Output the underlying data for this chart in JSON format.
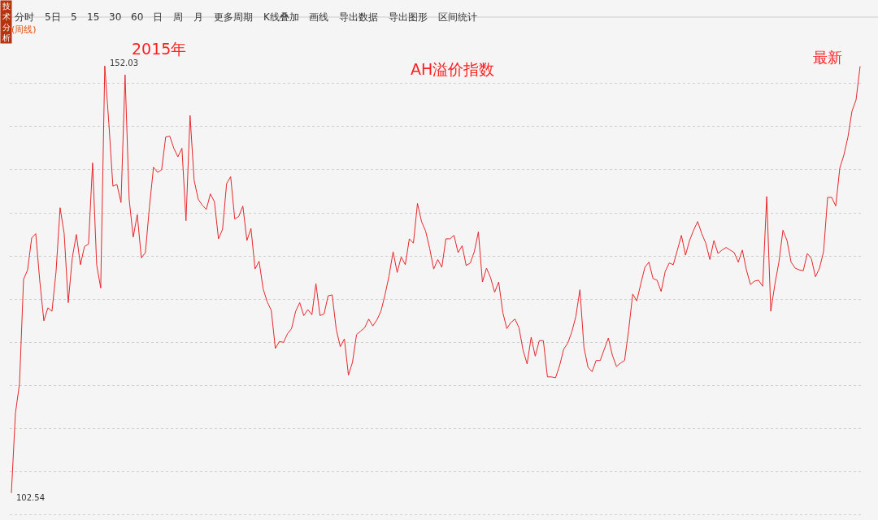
{
  "chart_data": {
    "type": "line",
    "title": "AH溢价指数",
    "annotations": [
      "2015年",
      "最新",
      "(周线)",
      "技术分析",
      "分时",
      "5日",
      "5",
      "15",
      "30",
      "60",
      "日",
      "周",
      "月",
      "更多周期",
      "K线叠加",
      "画线",
      "导出数据",
      "导出图形",
      "区间统计"
    ],
    "categories": [
      null,
      null,
      null,
      null,
      null,
      null,
      null,
      null,
      null,
      null,
      null,
      null,
      null,
      null,
      null,
      null,
      null,
      null,
      null,
      null,
      null,
      null,
      null,
      null,
      null,
      null,
      null,
      null,
      null,
      null,
      null,
      null,
      null,
      null,
      null,
      null,
      null,
      null,
      null,
      null,
      null,
      null,
      null,
      null,
      null,
      null,
      null,
      null,
      null,
      null,
      null,
      null,
      null,
      null,
      null,
      null,
      null,
      null,
      null,
      null,
      null,
      null,
      null,
      null,
      null,
      null,
      null,
      null,
      null,
      null,
      null,
      null,
      null,
      null,
      null,
      null,
      null,
      null,
      null,
      null,
      null,
      null,
      null,
      null,
      null,
      null,
      null,
      null,
      null,
      null,
      null,
      null,
      null,
      null,
      null,
      null,
      null,
      null,
      null,
      null,
      null,
      null,
      null,
      null,
      null,
      null,
      null,
      null,
      null,
      null,
      null,
      null,
      null,
      null,
      null,
      null,
      null,
      null,
      null,
      null,
      null,
      null,
      null,
      null,
      null,
      null,
      null,
      null,
      null,
      null,
      null,
      null,
      null,
      null,
      null,
      null,
      null,
      null,
      null,
      null,
      null,
      null,
      null,
      null,
      null,
      null,
      null,
      null,
      null,
      null,
      null,
      null,
      null,
      null,
      null,
      null,
      null,
      null,
      null,
      null,
      null,
      null,
      null,
      null,
      null,
      null,
      null,
      null,
      null,
      null,
      null,
      null,
      null,
      null,
      null,
      null,
      null,
      null,
      null,
      null,
      null,
      null,
      null,
      null,
      null,
      null,
      null,
      null,
      null,
      null,
      null,
      null,
      null,
      null,
      null,
      null,
      null,
      null,
      null,
      null,
      null,
      null,
      null,
      null,
      null,
      null,
      null,
      null,
      null,
      null
    ],
    "series": [
      {
        "color": "#e8262a",
        "values": [
          102.54,
          111.8,
          115.2,
          127.3,
          128.4,
          132.1,
          132.6,
          127.1,
          122.5,
          124.0,
          123.6,
          128.2,
          135.6,
          132.6,
          124.6,
          129.8,
          132.5,
          129.0,
          131.1,
          131.4,
          140.8,
          129.0,
          126.3,
          152.03,
          145.4,
          138.1,
          138.3,
          136.2,
          151.0,
          136.6,
          132.2,
          134.8,
          129.8,
          130.4,
          135.7,
          140.3,
          139.7,
          140.0,
          143.8,
          143.9,
          142.5,
          141.5,
          142.5,
          134.1,
          146.3,
          138.8,
          136.6,
          135.9,
          135.4,
          137.2,
          136.3,
          132.0,
          133.1,
          138.4,
          139.2,
          134.3,
          134.6,
          135.8,
          131.8,
          133.2,
          128.5,
          129.4,
          126.2,
          124.7,
          123.7,
          119.3,
          120.1,
          120.0,
          121.0,
          121.6,
          123.6,
          124.6,
          123.1,
          123.8,
          123.2,
          126.8,
          123.1,
          123.3,
          125.4,
          125.5,
          121.5,
          119.5,
          120.4,
          116.2,
          117.7,
          120.9,
          121.3,
          121.7,
          122.7,
          121.9,
          122.6,
          123.6,
          125.5,
          127.7,
          130.5,
          128.1,
          129.9,
          129.0,
          132.0,
          131.5,
          136.1,
          134.0,
          132.9,
          130.9,
          128.5,
          129.6,
          128.7,
          132.0,
          132.0,
          132.4,
          130.4,
          131.2,
          128.9,
          129.2,
          130.5,
          132.8,
          127.0,
          128.6,
          127.5,
          125.8,
          127.0,
          123.5,
          121.6,
          122.3,
          122.7,
          121.7,
          119.1,
          117.5,
          120.6,
          118.4,
          120.2,
          120.2,
          116.0,
          116.0,
          115.9,
          117.3,
          119.2,
          119.9,
          121.2,
          123.0,
          126.1,
          119.4,
          117.1,
          116.6,
          117.9,
          117.9,
          119.2,
          120.5,
          118.5,
          117.2,
          117.6,
          117.9,
          121.4,
          125.6,
          124.8,
          126.8,
          128.7,
          129.3,
          127.4,
          127.2,
          125.9,
          128.2,
          129.2,
          129.0,
          130.7,
          132.4,
          130.1,
          131.8,
          133.0,
          134.0,
          132.6,
          131.5,
          129.6,
          131.8,
          130.3,
          130.7,
          131.0,
          130.7,
          130.4,
          129.3,
          130.7,
          128.4,
          126.7,
          127.1,
          127.2,
          126.5,
          136.9,
          123.6,
          126.7,
          129.3,
          133.0,
          131.8,
          129.3,
          128.6,
          128.4,
          128.3,
          130.3,
          129.7,
          127.6,
          128.6,
          130.5,
          136.8,
          136.8,
          135.8,
          140.2,
          141.7,
          143.8,
          146.8,
          148.1,
          152.0
        ],
        "value_labels": [
          "102.54",
          null,
          null,
          null,
          null,
          null,
          null,
          null,
          null,
          null,
          null,
          null,
          null,
          null,
          null,
          null,
          null,
          null,
          null,
          null,
          null,
          null,
          null,
          "152.03",
          null,
          null,
          null,
          null,
          null,
          null,
          null,
          null,
          null,
          null,
          null,
          null,
          null,
          null,
          null,
          null,
          null,
          null,
          null,
          null,
          null,
          null,
          null,
          null,
          null,
          null,
          null,
          null,
          null,
          null,
          null,
          null,
          null,
          null,
          null,
          null,
          null,
          null,
          null,
          null,
          null,
          null,
          null,
          null,
          null,
          null,
          null,
          null,
          null,
          null,
          null,
          null,
          null,
          null,
          null,
          null,
          null,
          null,
          null,
          null,
          null,
          null,
          null,
          null,
          null,
          null,
          null,
          null,
          null,
          null,
          null,
          null,
          null,
          null,
          null,
          null,
          null,
          null,
          null,
          null,
          null,
          null,
          null,
          null,
          null,
          null,
          null,
          null,
          null,
          null,
          null,
          null,
          null,
          null,
          null,
          null,
          null,
          null,
          null,
          null,
          null,
          null,
          null,
          null,
          null,
          null,
          null,
          null,
          null,
          null,
          null,
          null,
          null,
          null,
          null,
          null,
          null,
          null,
          null,
          null,
          null,
          null,
          null,
          null,
          null,
          null,
          null,
          null,
          null,
          null,
          null,
          null,
          null,
          null,
          null,
          null,
          null,
          null,
          null,
          null,
          null,
          null,
          null,
          null,
          null,
          null,
          null,
          null,
          null,
          null,
          null,
          null,
          null,
          null,
          null,
          null,
          null,
          null,
          null,
          null,
          null,
          null,
          null,
          null,
          null,
          null,
          null,
          null,
          null,
          null,
          null,
          null,
          null,
          null,
          null,
          null,
          null,
          null,
          null,
          null,
          null,
          null,
          null,
          null,
          null,
          null
        ]
      }
    ],
    "grid": "y",
    "marker": "none",
    "line_style": "solid",
    "tick_labels": false
  }
}
